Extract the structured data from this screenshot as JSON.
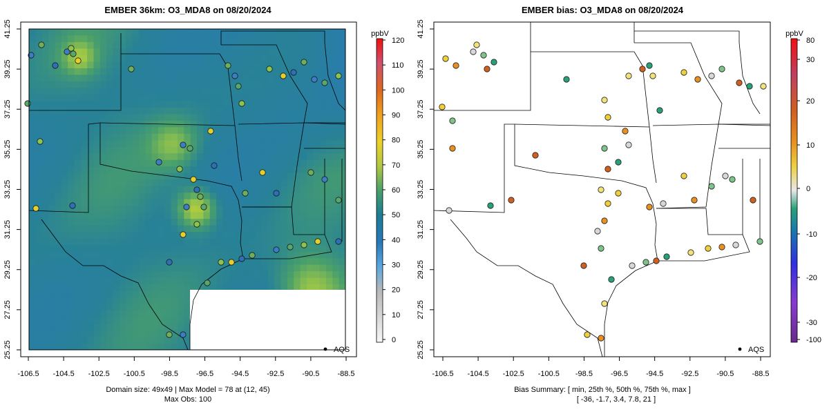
{
  "colors": {
    "background": "#ffffff",
    "frame": "#000000",
    "border": "#000000"
  },
  "left_panel": {
    "title": "EMBER 36km: O3_MDA8 on 08/20/2024",
    "colorbar_unit": "ppbV",
    "colorbar_ticks": [
      "0",
      "10",
      "20",
      "30",
      "40",
      "50",
      "60",
      "70",
      "80",
      "90",
      "100",
      "110",
      "120"
    ],
    "legend_label": "AQS",
    "footer_line1": "Domain size: 49x49 | Max Model = 78 at (12, 45)",
    "footer_line2": "Max Obs: 100"
  },
  "right_panel": {
    "title": "EMBER bias: O3_MDA8 on 08/20/2024",
    "colorbar_unit": "ppbV",
    "colorbar_ticks": [
      "-100",
      "-30",
      "-20",
      "-10",
      "0",
      "10",
      "20",
      "30",
      "80"
    ],
    "legend_label": "AQS",
    "footer_line1": "Bias Summary: [ min, 25th %, 50th %, 75th %, max ]",
    "footer_line2": "[ -36,   -1.7,   3.4,   7.8,   21 ]"
  },
  "axes": {
    "x_ticks": [
      "-106.5",
      "-104.5",
      "-102.5",
      "-100.5",
      "-98.5",
      "-96.5",
      "-94.5",
      "-92.5",
      "-90.5",
      "-88.5"
    ],
    "y_ticks": [
      "25.25",
      "27.25",
      "29.25",
      "31.25",
      "33.25",
      "35.25",
      "37.25",
      "39.25",
      "41.25"
    ]
  },
  "chart_data": [
    {
      "type": "heatmap",
      "title": "EMBER 36km: O3_MDA8 on 08/20/2024",
      "variable": "O3_MDA8",
      "units": "ppbV",
      "date": "08/20/2024",
      "domain_size": "49x49",
      "max_model": 78,
      "max_model_cell": [
        12,
        45
      ],
      "max_obs": 100,
      "color_range": [
        0,
        120
      ],
      "x_range": [
        -107,
        -88
      ],
      "y_range": [
        25.25,
        41.5
      ],
      "overlay": "AQS observation sites"
    },
    {
      "type": "scatter",
      "title": "EMBER bias: O3_MDA8 on 08/20/2024",
      "variable": "O3_MDA8 bias",
      "units": "ppbV",
      "date": "08/20/2024",
      "bias_summary": {
        "min": -36,
        "p25": -1.7,
        "p50": 3.4,
        "p75": 7.8,
        "max": 21
      },
      "colorbar_ticks": [
        -100,
        -30,
        -20,
        -10,
        0,
        10,
        20,
        30,
        80
      ],
      "x_range": [
        -107,
        -88
      ],
      "y_range": [
        25.25,
        41.5
      ],
      "overlay": "AQS observation sites"
    }
  ]
}
